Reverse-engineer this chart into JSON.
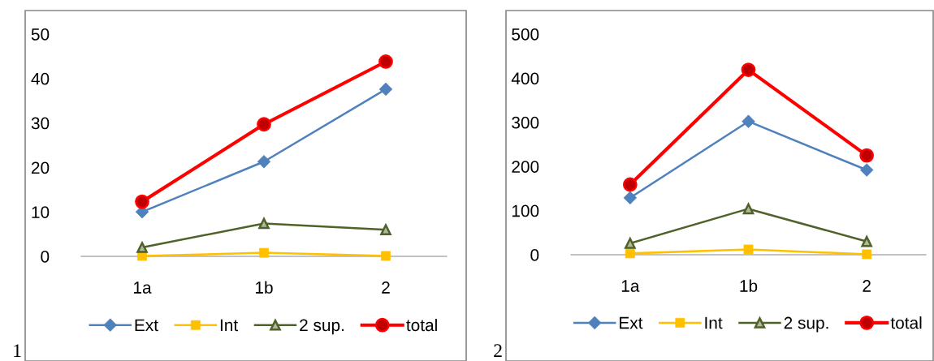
{
  "chart_data": [
    {
      "type": "line",
      "categories": [
        "1a",
        "1b",
        "2"
      ],
      "ylim": [
        0,
        50
      ],
      "yticks": [
        0,
        10,
        20,
        30,
        40,
        50
      ],
      "grid": false,
      "legend": "bottom",
      "annotations": [
        "1"
      ],
      "series": [
        {
          "name": "Ext",
          "color": "#4f81bd",
          "marker": "diamond",
          "values": [
            10,
            21.3,
            37.6
          ]
        },
        {
          "name": "Int",
          "color": "#ffc000",
          "marker": "square",
          "values": [
            0.1,
            0.8,
            0.1
          ]
        },
        {
          "name": "2 sup.",
          "color": "#4f6228",
          "marker": "triangle",
          "values": [
            2.0,
            7.4,
            6.0
          ]
        },
        {
          "name": "total",
          "color": "#ff0000",
          "marker": "circle",
          "values": [
            12.3,
            29.7,
            43.8
          ]
        }
      ]
    },
    {
      "type": "line",
      "categories": [
        "1a",
        "1b",
        "2"
      ],
      "ylim": [
        0,
        500
      ],
      "yticks": [
        0,
        100,
        200,
        300,
        400,
        500
      ],
      "grid": false,
      "legend": "bottom",
      "annotations": [
        "2"
      ],
      "series": [
        {
          "name": "Ext",
          "color": "#4f81bd",
          "marker": "diamond",
          "values": [
            129,
            302,
            192
          ]
        },
        {
          "name": "Int",
          "color": "#ffc000",
          "marker": "square",
          "values": [
            3,
            12,
            1
          ]
        },
        {
          "name": "2 sup.",
          "color": "#4f6228",
          "marker": "triangle",
          "values": [
            26,
            104,
            30
          ]
        },
        {
          "name": "total",
          "color": "#ff0000",
          "marker": "circle",
          "values": [
            159,
            419,
            225
          ]
        }
      ]
    }
  ]
}
